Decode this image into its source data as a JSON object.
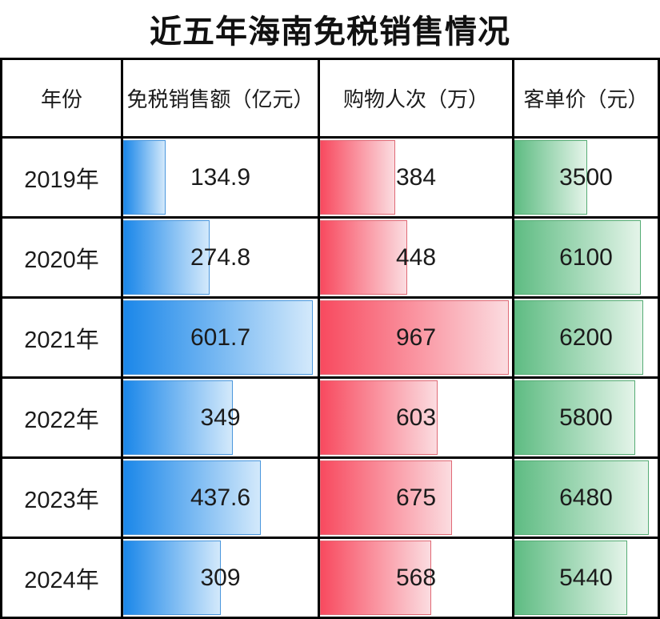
{
  "title": "近五年海南免税销售情况",
  "table": {
    "columns": [
      {
        "label": "年份"
      },
      {
        "label": "免税销售额（亿元）"
      },
      {
        "label": "购物人次（万）"
      },
      {
        "label": "客单价（元）"
      }
    ],
    "rows": [
      {
        "year": "2019年",
        "sales": "134.9",
        "shoppers": "384",
        "price": "3500"
      },
      {
        "year": "2020年",
        "sales": "274.8",
        "shoppers": "448",
        "price": "6100"
      },
      {
        "year": "2021年",
        "sales": "601.7",
        "shoppers": "967",
        "price": "6200"
      },
      {
        "year": "2022年",
        "sales": "349",
        "shoppers": "603",
        "price": "5800"
      },
      {
        "year": "2023年",
        "sales": "437.6",
        "shoppers": "675",
        "price": "6480"
      },
      {
        "year": "2024年",
        "sales": "309",
        "shoppers": "568",
        "price": "5440"
      }
    ]
  },
  "chart_data": {
    "type": "bar",
    "title": "近五年海南免税销售情况",
    "categories": [
      "2019年",
      "2020年",
      "2021年",
      "2022年",
      "2023年",
      "2024年"
    ],
    "series": [
      {
        "name": "免税销售额（亿元）",
        "values": [
          134.9,
          274.8,
          601.7,
          349,
          437.6,
          309
        ],
        "axis_max": 617,
        "color_from": "#1b87e9",
        "color_to": "#d3e9fb",
        "border_color": "#4a97dd"
      },
      {
        "name": "购物人次（万）",
        "values": [
          384,
          448,
          967,
          603,
          675,
          568
        ],
        "axis_max": 982,
        "color_from": "#f84a5f",
        "color_to": "#fbdce0",
        "border_color": "#e06a76"
      },
      {
        "name": "客单价（元）",
        "values": [
          3500,
          6100,
          6200,
          5800,
          6480,
          5440
        ],
        "axis_max": 6890,
        "color_from": "#5fbc83",
        "color_to": "#e4f4e9",
        "border_color": "#55ac74"
      }
    ],
    "layout": {
      "orientation": "horizontal",
      "grid": "table",
      "legend": "none"
    }
  },
  "colors": {
    "grid_border": "#000000",
    "background": "#ffffff",
    "text": "#1b1b1b",
    "bar_blue": "#1b87e9",
    "bar_red": "#f84a5f",
    "bar_green": "#5fbc83"
  }
}
